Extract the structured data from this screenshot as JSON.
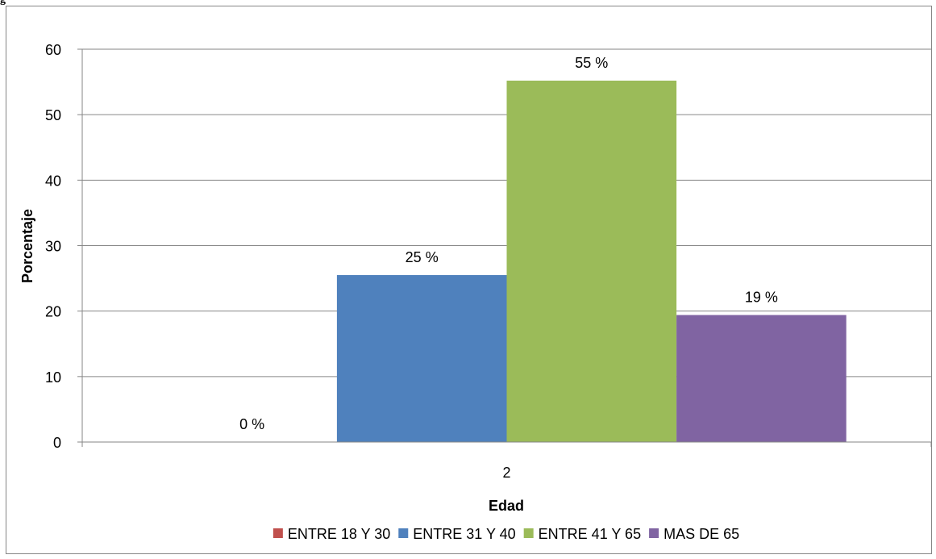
{
  "figure_label": "g",
  "chart_data": {
    "type": "bar",
    "title": "",
    "xlabel": "Edad",
    "ylabel": "Porcentaje",
    "categories": [
      "2"
    ],
    "ylim": [
      0,
      60
    ],
    "yticks": [
      0,
      10,
      20,
      30,
      40,
      50,
      60
    ],
    "grid": true,
    "legend_position": "bottom",
    "series": [
      {
        "name": "ENTRE 18 Y 30",
        "values": [
          0
        ],
        "label": "0 %",
        "color": "#C0504D"
      },
      {
        "name": "ENTRE 31 Y 40",
        "values": [
          25.5
        ],
        "label": "25 %",
        "color": "#4F81BD"
      },
      {
        "name": "ENTRE 41 Y 65",
        "values": [
          55.2
        ],
        "label": "55 %",
        "color": "#9BBB59"
      },
      {
        "name": "MAS DE 65",
        "values": [
          19.4
        ],
        "label": "19 %",
        "color": "#8064A2"
      }
    ]
  }
}
